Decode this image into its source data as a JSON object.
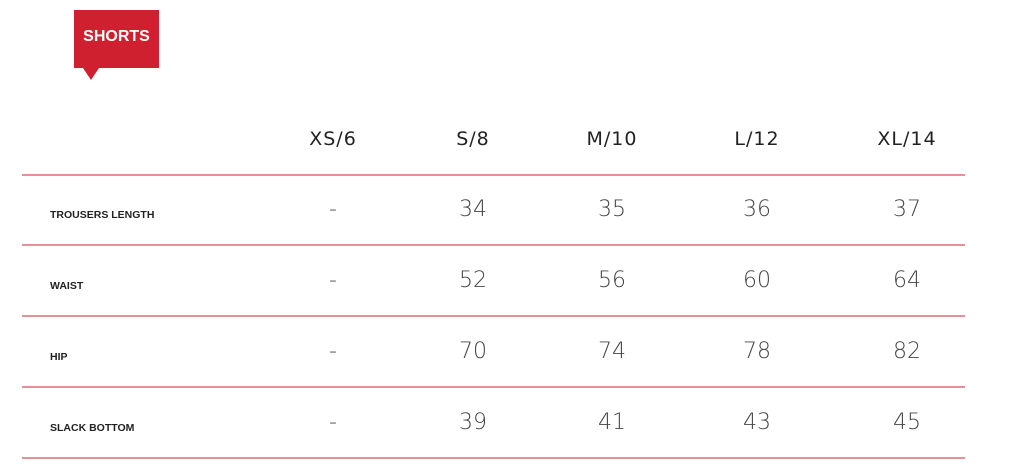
{
  "badge": {
    "label": "SHORTS",
    "color": "#cf2030"
  },
  "table": {
    "columns": [
      "XS/6",
      "S/8",
      "M/10",
      "L/12",
      "XL/14"
    ],
    "rows": [
      {
        "label": "TROUSERS LENGTH",
        "values": [
          "-",
          "34",
          "35",
          "36",
          "37"
        ]
      },
      {
        "label": "WAIST",
        "values": [
          "-",
          "52",
          "56",
          "60",
          "64"
        ]
      },
      {
        "label": "HIP",
        "values": [
          "-",
          "70",
          "74",
          "78",
          "82"
        ]
      },
      {
        "label": "SLACK BOTTOM",
        "values": [
          "-",
          "39",
          "41",
          "43",
          "45"
        ]
      }
    ]
  }
}
